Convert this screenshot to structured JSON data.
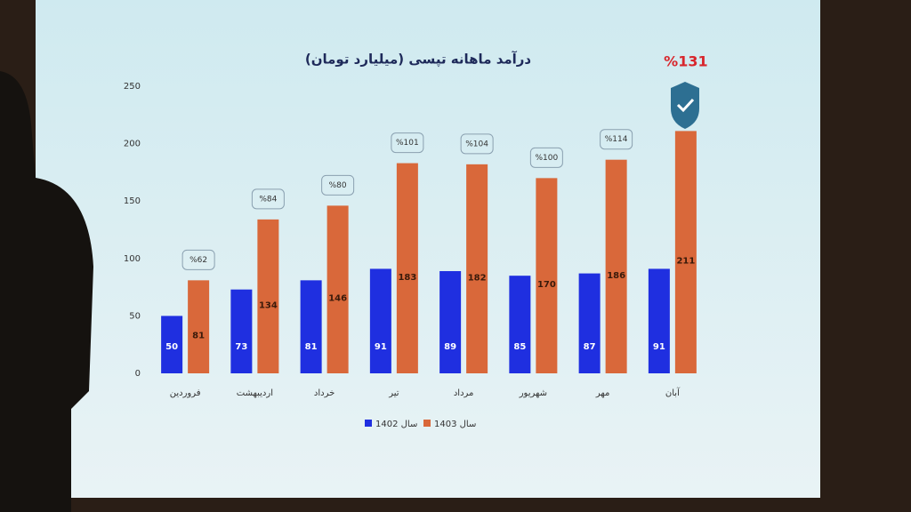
{
  "chart_data": {
    "type": "bar",
    "title": "درآمد ماهانه تپسی (میلیارد تومان)",
    "categories": [
      "فروردین",
      "اردیبهشت",
      "خرداد",
      "تیر",
      "مرداد",
      "شهریور",
      "مهر",
      "آبان"
    ],
    "series": [
      {
        "name": "سال 1402",
        "color": "#1f2fe0",
        "values": [
          50,
          73,
          81,
          91,
          89,
          85,
          87,
          91
        ]
      },
      {
        "name": "سال 1403",
        "color": "#d9683a",
        "values": [
          81,
          134,
          146,
          183,
          182,
          170,
          186,
          211
        ]
      }
    ],
    "annotations": [
      "%62",
      "%84",
      "%80",
      "%101",
      "%104",
      "%100",
      "%114",
      "%131"
    ],
    "ylim": [
      0,
      250
    ],
    "yticks": [
      0,
      50,
      100,
      150,
      200,
      250
    ],
    "grid": false
  }
}
